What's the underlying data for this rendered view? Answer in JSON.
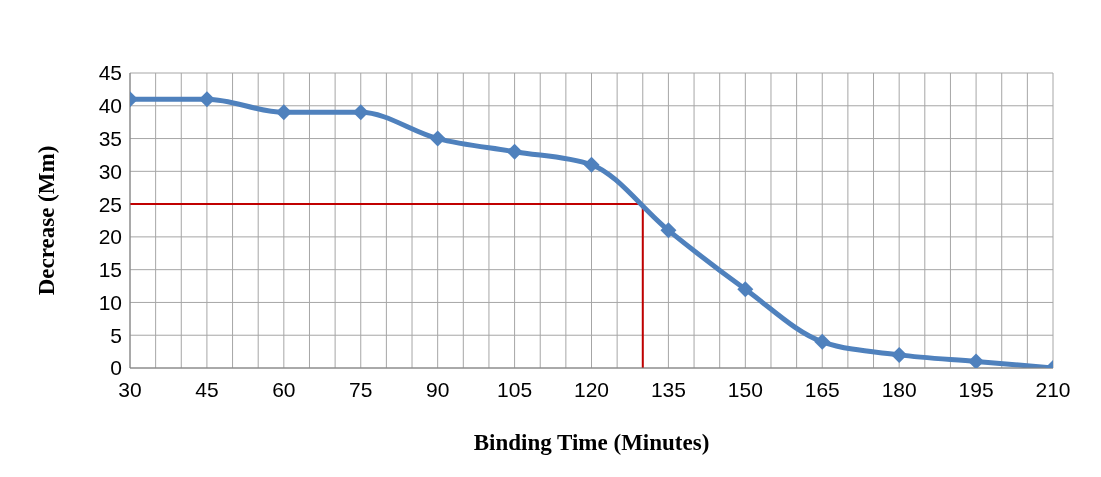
{
  "chart_data": {
    "type": "line",
    "xlabel": "Binding Time (Minutes)",
    "ylabel": "Decrease (Mm)",
    "x": [
      30,
      45,
      60,
      75,
      90,
      105,
      120,
      135,
      150,
      165,
      180,
      195,
      210
    ],
    "series": [
      {
        "color": "#4f81bd",
        "values": [
          41,
          41,
          39,
          39,
          35,
          33,
          31,
          21,
          12,
          4,
          2,
          1,
          0
        ]
      }
    ],
    "xlim": [
      30,
      210
    ],
    "xticks": [
      30,
      {
        "value": 35,
        "label": null
      },
      {
        "value": 40,
        "label": null
      },
      45,
      {
        "value": 50,
        "label": null
      },
      {
        "value": 55,
        "label": null
      },
      60,
      {
        "value": 65,
        "label": null
      },
      {
        "value": 70,
        "label": null
      },
      75,
      {
        "value": 80,
        "label": null
      },
      {
        "value": 85,
        "label": null
      },
      90,
      {
        "value": 95,
        "label": null
      },
      {
        "value": 100,
        "label": null
      },
      105,
      {
        "value": 110,
        "label": null
      },
      {
        "value": 115,
        "label": null
      },
      120,
      {
        "value": 125,
        "label": null
      },
      {
        "value": 130,
        "label": null
      },
      135,
      {
        "value": 140,
        "label": null
      },
      {
        "value": 145,
        "label": null
      },
      150,
      {
        "value": 155,
        "label": null
      },
      {
        "value": 160,
        "label": null
      },
      165,
      {
        "value": 170,
        "label": null
      },
      {
        "value": 175,
        "label": null
      },
      180,
      {
        "value": 185,
        "label": null
      },
      {
        "value": 190,
        "label": null
      },
      195,
      {
        "value": 200,
        "label": null
      },
      {
        "value": 205,
        "label": null
      },
      210
    ],
    "ylim": [
      0,
      45
    ],
    "yticks": [
      0,
      5,
      10,
      15,
      20,
      25,
      30,
      35,
      40,
      45
    ],
    "ref_lines": [
      {
        "axis": "y",
        "value": 25,
        "color": "#c00000"
      },
      {
        "axis": "x",
        "value": 130,
        "color": "#c00000"
      }
    ],
    "grid": true,
    "marker": "diamond",
    "line_style": "solid",
    "legend": false
  }
}
